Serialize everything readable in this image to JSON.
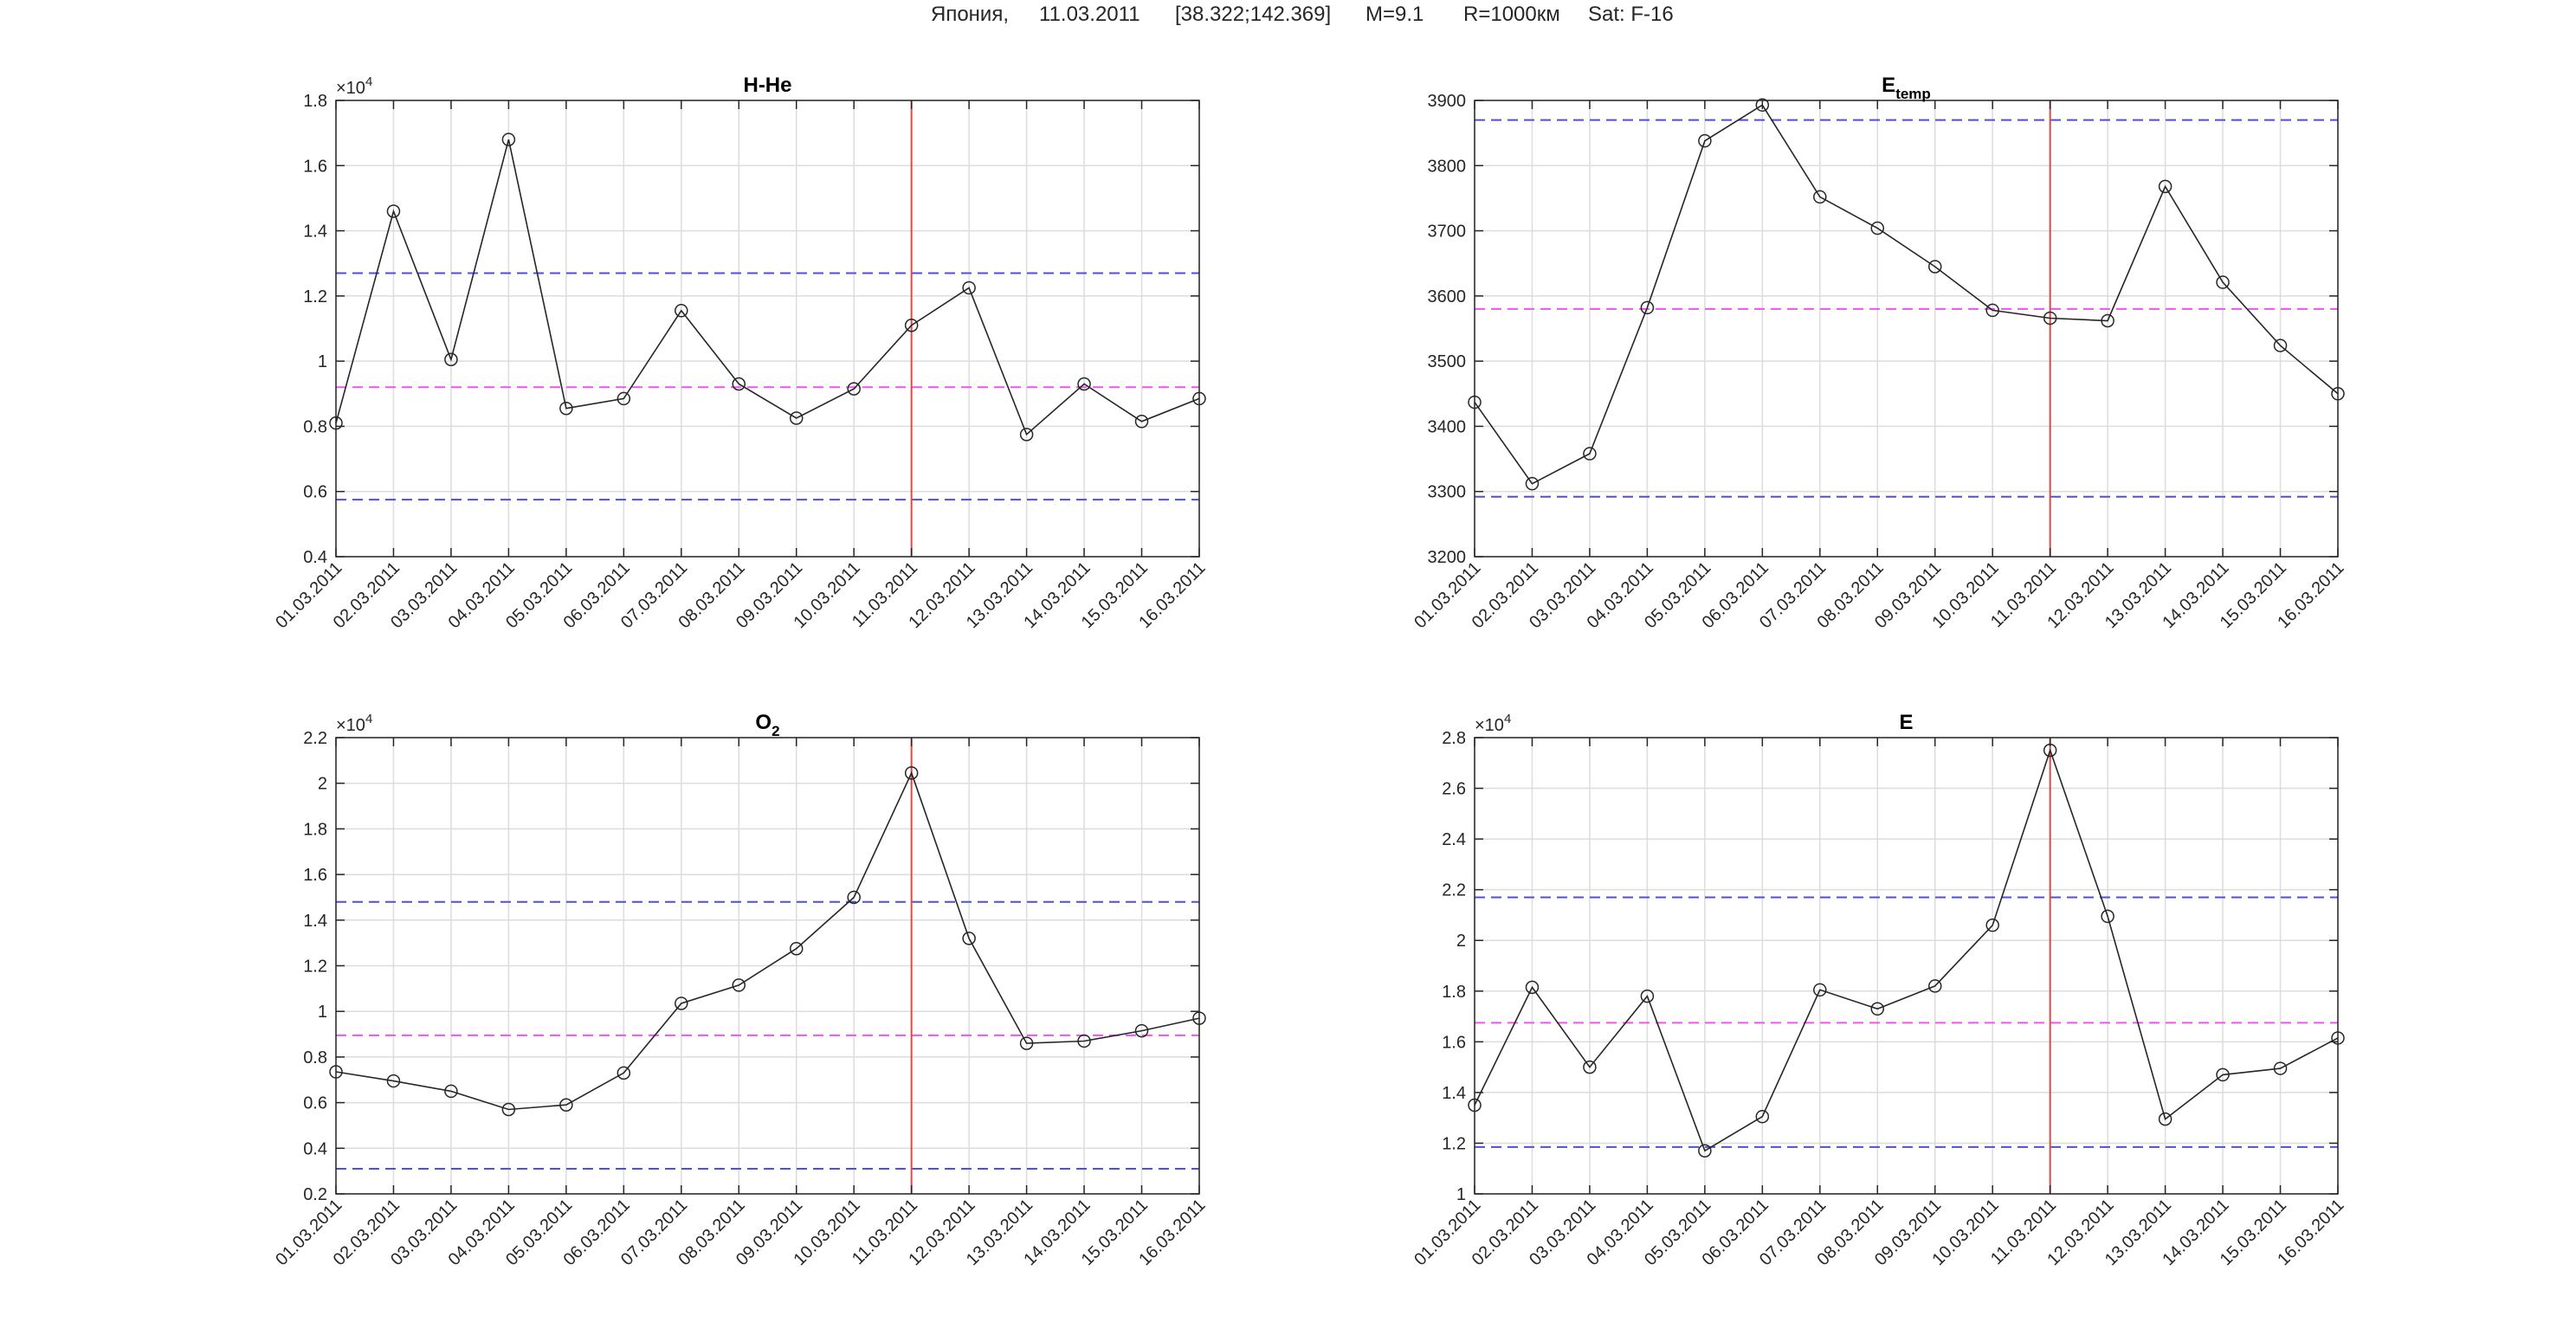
{
  "figure": {
    "title_parts": [
      "Япония,",
      "11.03.2011",
      "[38.322;142.369]",
      "M=9.1",
      "R=1000км",
      "Sat: F-16"
    ]
  },
  "chart_data": [
    {
      "type": "line",
      "title": "H-He",
      "title_sub": "",
      "x": [
        "01.03.2011",
        "02.03.2011",
        "03.03.2011",
        "04.03.2011",
        "05.03.2011",
        "06.03.2011",
        "07.03.2011",
        "08.03.2011",
        "09.03.2011",
        "10.03.2011",
        "11.03.2011",
        "12.03.2011",
        "13.03.2011",
        "14.03.2011",
        "15.03.2011",
        "16.03.2011"
      ],
      "values": [
        8100,
        14600,
        10050,
        16800,
        8550,
        8850,
        11550,
        9300,
        8250,
        9150,
        11100,
        12250,
        7750,
        9300,
        8150,
        8850
      ],
      "ylim": [
        4000,
        18000
      ],
      "yticks": [
        4000,
        6000,
        8000,
        10000,
        12000,
        14000,
        16000,
        18000
      ],
      "ytick_labels": [
        "0.4",
        "0.6",
        "0.8",
        "1",
        "1.2",
        "1.4",
        "1.6",
        "1.8"
      ],
      "y_exponent": "4",
      "upper_threshold": 12700,
      "mean_line": 9200,
      "lower_threshold": 5750,
      "event_index": 10,
      "grid": true
    },
    {
      "type": "line",
      "title": "E",
      "title_sub": "temp",
      "x": [
        "01.03.2011",
        "02.03.2011",
        "03.03.2011",
        "04.03.2011",
        "05.03.2011",
        "06.03.2011",
        "07.03.2011",
        "08.03.2011",
        "09.03.2011",
        "10.03.2011",
        "11.03.2011",
        "12.03.2011",
        "13.03.2011",
        "14.03.2011",
        "15.03.2011",
        "16.03.2011"
      ],
      "values": [
        3437,
        3312,
        3358,
        3582,
        3838,
        3893,
        3752,
        3704,
        3645,
        3578,
        3566,
        3562,
        3768,
        3621,
        3524,
        3450
      ],
      "ylim": [
        3200,
        3900
      ],
      "yticks": [
        3200,
        3300,
        3400,
        3500,
        3600,
        3700,
        3800,
        3900
      ],
      "ytick_labels": [
        "3200",
        "3300",
        "3400",
        "3500",
        "3600",
        "3700",
        "3800",
        "3900"
      ],
      "y_exponent": "",
      "upper_threshold": 3870,
      "mean_line": 3580,
      "lower_threshold": 3292,
      "event_index": 10,
      "grid": true
    },
    {
      "type": "line",
      "title": "O",
      "title_sub": "2",
      "x": [
        "01.03.2011",
        "02.03.2011",
        "03.03.2011",
        "04.03.2011",
        "05.03.2011",
        "06.03.2011",
        "07.03.2011",
        "08.03.2011",
        "09.03.2011",
        "10.03.2011",
        "11.03.2011",
        "12.03.2011",
        "13.03.2011",
        "14.03.2011",
        "15.03.2011",
        "16.03.2011"
      ],
      "values": [
        7350,
        6950,
        6500,
        5700,
        5900,
        7300,
        10350,
        11150,
        12750,
        15000,
        20450,
        13200,
        8600,
        8700,
        9150,
        9700
      ],
      "ylim": [
        2000,
        22000
      ],
      "yticks": [
        2000,
        4000,
        6000,
        8000,
        10000,
        12000,
        14000,
        16000,
        18000,
        20000,
        22000
      ],
      "ytick_labels": [
        "0.2",
        "0.4",
        "0.6",
        "0.8",
        "1",
        "1.2",
        "1.4",
        "1.6",
        "1.8",
        "2",
        "2.2"
      ],
      "y_exponent": "4",
      "upper_threshold": 14800,
      "mean_line": 8950,
      "lower_threshold": 3100,
      "event_index": 10,
      "grid": true
    },
    {
      "type": "line",
      "title": "E",
      "title_sub": "",
      "x": [
        "01.03.2011",
        "02.03.2011",
        "03.03.2011",
        "04.03.2011",
        "05.03.2011",
        "06.03.2011",
        "07.03.2011",
        "08.03.2011",
        "09.03.2011",
        "10.03.2011",
        "11.03.2011",
        "12.03.2011",
        "13.03.2011",
        "14.03.2011",
        "15.03.2011",
        "16.03.2011"
      ],
      "values": [
        13500,
        18150,
        15000,
        17800,
        11700,
        13050,
        18050,
        17300,
        18200,
        20600,
        27500,
        20950,
        12950,
        14700,
        14950,
        16150
      ],
      "ylim": [
        10000,
        28000
      ],
      "yticks": [
        10000,
        12000,
        14000,
        16000,
        18000,
        20000,
        22000,
        24000,
        26000,
        28000
      ],
      "ytick_labels": [
        "1",
        "1.2",
        "1.4",
        "1.6",
        "1.8",
        "2",
        "2.2",
        "2.4",
        "2.6",
        "2.8"
      ],
      "y_exponent": "4",
      "upper_threshold": 21700,
      "mean_line": 16750,
      "lower_threshold": 11850,
      "event_index": 10,
      "grid": true
    }
  ],
  "colors": {
    "series": "#262626",
    "marker": "#262626",
    "threshold": "#4f4fd9",
    "mean": "#ee55ee",
    "event": "#e04848",
    "grid": "#dcdcdc"
  }
}
